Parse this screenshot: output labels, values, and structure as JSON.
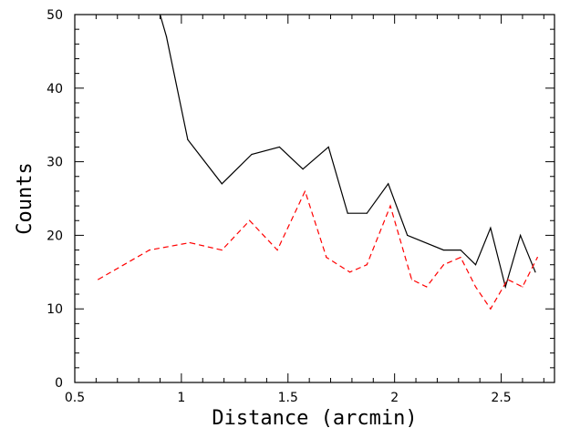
{
  "chart_data": {
    "type": "line",
    "xlabel": "Distance (arcmin)",
    "ylabel": "Counts",
    "xlim": [
      0.5,
      2.75
    ],
    "ylim": [
      0,
      50
    ],
    "xticks": [
      {
        "value": 0.5,
        "label": "0.5"
      },
      {
        "value": 1.0,
        "label": "1"
      },
      {
        "value": 1.5,
        "label": "1.5"
      },
      {
        "value": 2.0,
        "label": "2"
      },
      {
        "value": 2.5,
        "label": "2.5"
      }
    ],
    "yticks": [
      {
        "value": 0,
        "label": "0"
      },
      {
        "value": 10,
        "label": "10"
      },
      {
        "value": 20,
        "label": "20"
      },
      {
        "value": 30,
        "label": "30"
      },
      {
        "value": 40,
        "label": "40"
      },
      {
        "value": 50,
        "label": "50"
      }
    ],
    "series": [
      {
        "style": "solid",
        "color": "#000000",
        "points": [
          [
            0.89,
            51
          ],
          [
            0.93,
            47
          ],
          [
            1.03,
            33
          ],
          [
            1.19,
            27
          ],
          [
            1.33,
            31
          ],
          [
            1.46,
            32
          ],
          [
            1.57,
            29
          ],
          [
            1.69,
            32
          ],
          [
            1.78,
            23
          ],
          [
            1.87,
            23
          ],
          [
            1.97,
            27
          ],
          [
            2.06,
            20
          ],
          [
            2.23,
            18
          ],
          [
            2.31,
            18
          ],
          [
            2.38,
            16
          ],
          [
            2.45,
            21
          ],
          [
            2.52,
            13
          ],
          [
            2.59,
            20
          ],
          [
            2.66,
            15
          ]
        ]
      },
      {
        "style": "dashed",
        "color": "#ff0000",
        "points": [
          [
            0.61,
            14
          ],
          [
            0.85,
            18
          ],
          [
            1.04,
            19
          ],
          [
            1.19,
            18
          ],
          [
            1.32,
            22
          ],
          [
            1.45,
            18
          ],
          [
            1.58,
            26
          ],
          [
            1.68,
            17
          ],
          [
            1.79,
            15
          ],
          [
            1.87,
            16
          ],
          [
            1.98,
            24
          ],
          [
            2.08,
            14
          ],
          [
            2.15,
            13
          ],
          [
            2.23,
            16
          ],
          [
            2.31,
            17
          ],
          [
            2.38,
            13
          ],
          [
            2.45,
            10
          ],
          [
            2.53,
            14
          ],
          [
            2.6,
            13
          ],
          [
            2.67,
            17
          ]
        ]
      }
    ],
    "grid": false,
    "legend": "none"
  }
}
